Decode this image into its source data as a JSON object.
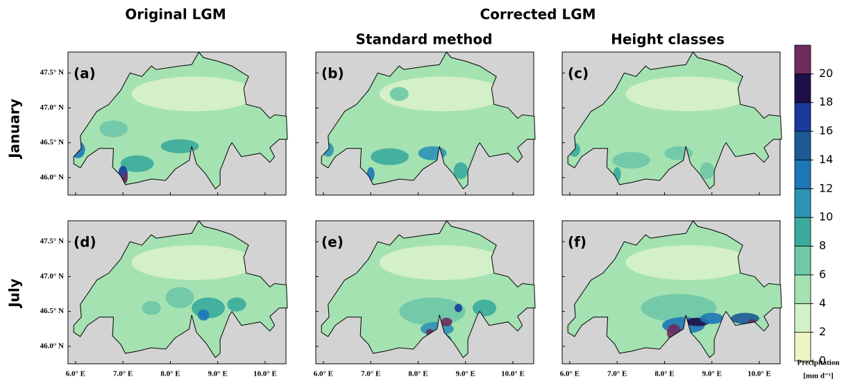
{
  "headers": {
    "original": "Original LGM",
    "corrected": "Corrected LGM",
    "standard": "Standard method",
    "height": "Height classes"
  },
  "row_labels": [
    "January",
    "July"
  ],
  "panels": [
    {
      "label": "(a)"
    },
    {
      "label": "(b)"
    },
    {
      "label": "(c)"
    },
    {
      "label": "(d)"
    },
    {
      "label": "(e)"
    },
    {
      "label": "(f)"
    }
  ],
  "lon_range": [
    5.84,
    10.44
  ],
  "lat_range": [
    45.75,
    47.8
  ],
  "lon_ticks": [
    {
      "value": 6,
      "label": "6.0° E"
    },
    {
      "value": 7,
      "label": "7.0° E"
    },
    {
      "value": 8,
      "label": "8.0° E"
    },
    {
      "value": 9,
      "label": "9.0° E"
    },
    {
      "value": 10,
      "label": "10.0° E"
    }
  ],
  "lat_ticks": [
    {
      "value": 46,
      "label": "46.0° N"
    },
    {
      "value": 46.5,
      "label": "46.5° N"
    },
    {
      "value": 47,
      "label": "47.0° N"
    },
    {
      "value": 47.5,
      "label": "47.5° N"
    }
  ],
  "colorbar": {
    "title": "Precipitation",
    "unit": "[mm d⁻¹]",
    "range": [
      0,
      22
    ],
    "ticks": [
      0,
      2,
      4,
      6,
      8,
      10,
      12,
      14,
      16,
      18,
      20
    ],
    "bounds": [
      0,
      2,
      4,
      6,
      8,
      10,
      12,
      14,
      16,
      18,
      20,
      22
    ],
    "colors": [
      "#eef5c4",
      "#d4f0c8",
      "#a4e2b2",
      "#6fc8a6",
      "#3aab9b",
      "#2d93b2",
      "#1d78b6",
      "#1b5a94",
      "#1a3a9e",
      "#1e0f4a",
      "#6e2c5c"
    ]
  }
}
